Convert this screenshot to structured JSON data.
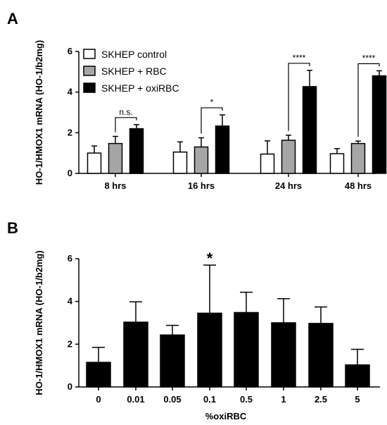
{
  "panels": [
    {
      "letter": "A"
    },
    {
      "letter": "B"
    }
  ],
  "chart_data": [
    {
      "type": "bar",
      "panel": "A",
      "ylabel": "HO-1/HMOX1 mRNA (HO-1/b2mg)",
      "xlabel": "",
      "ylim": [
        0,
        6
      ],
      "yticks": [
        0,
        2,
        4,
        6
      ],
      "categories": [
        "8 hrs",
        "16 hrs",
        "24 hrs",
        "48 hrs"
      ],
      "series": [
        {
          "name": "SKHEP control",
          "color": "#ffffff",
          "values": [
            1.0,
            1.05,
            0.95,
            0.97
          ],
          "errors": [
            0.35,
            0.5,
            0.65,
            0.25
          ]
        },
        {
          "name": "SKHEP + RBC",
          "color": "#a6a6a6",
          "values": [
            1.47,
            1.3,
            1.63,
            1.47
          ],
          "errors": [
            0.35,
            0.45,
            0.25,
            0.12
          ]
        },
        {
          "name": "SKHEP + oxiRBC",
          "color": "#000000",
          "values": [
            2.2,
            2.33,
            4.27,
            4.8
          ],
          "errors": [
            0.2,
            0.55,
            0.8,
            0.25
          ]
        }
      ],
      "significance": [
        {
          "category": "8 hrs",
          "label": "n.s."
        },
        {
          "category": "16 hrs",
          "label": "*"
        },
        {
          "category": "24 hrs",
          "label": "****"
        },
        {
          "category": "48 hrs",
          "label": "****"
        }
      ],
      "legend": "top-left"
    },
    {
      "type": "bar",
      "panel": "B",
      "ylabel": "HO-1/HMOX1 mRNA (HO-1/b2mg)",
      "xlabel": "%oxiRBC",
      "ylim": [
        0,
        6
      ],
      "yticks": [
        0,
        2,
        4,
        6
      ],
      "categories": [
        "0",
        "0.01",
        "0.05",
        "0.1",
        "0.5",
        "1",
        "2.5",
        "5"
      ],
      "series": [
        {
          "color": "#000000",
          "values": [
            1.15,
            3.03,
            2.43,
            3.45,
            3.48,
            3.0,
            2.97,
            1.03
          ],
          "errors": [
            0.7,
            0.95,
            0.45,
            2.25,
            0.95,
            1.13,
            0.77,
            0.73
          ]
        }
      ],
      "significance": [
        {
          "category": "0.1",
          "label": "*"
        }
      ]
    }
  ]
}
